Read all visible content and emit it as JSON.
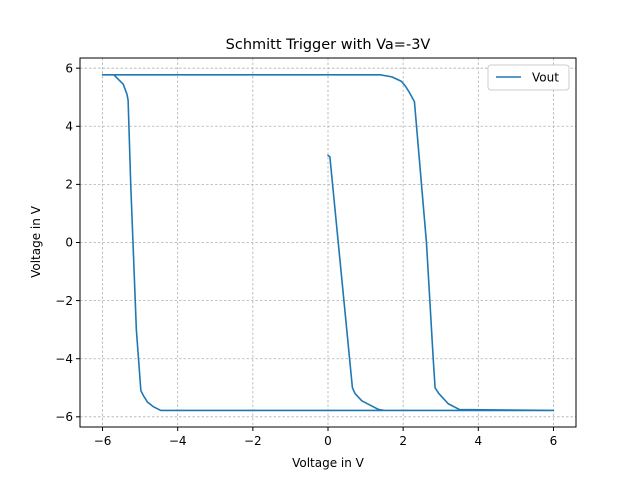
{
  "chart_data": {
    "type": "line",
    "title": "Schmitt Trigger with Va=-3V",
    "xlabel": "Voltage in V",
    "ylabel": "Voltage in V",
    "xlim": [
      -6.6,
      6.6
    ],
    "ylim": [
      -6.35,
      6.35
    ],
    "xticks": [
      -6,
      -4,
      -2,
      0,
      2,
      4,
      6
    ],
    "yticks": [
      -6,
      -4,
      -2,
      0,
      2,
      4,
      6
    ],
    "xtick_labels": [
      "−6",
      "−4",
      "−2",
      "0",
      "2",
      "4",
      "6"
    ],
    "ytick_labels": [
      "−6",
      "−4",
      "−2",
      "0",
      "2",
      "4",
      "6"
    ],
    "grid": true,
    "legend_position": "top-right",
    "series": [
      {
        "name": "Vout",
        "color": "#1f77b4",
        "x": [
          0,
          0.05,
          0.65,
          0.72,
          0.9,
          1.2,
          1.35,
          1.5,
          3.5,
          4.5,
          6.0,
          6.0,
          3.5,
          3.2,
          2.95,
          2.85,
          2.8,
          2.62,
          2.3,
          2.15,
          2.05,
          1.95,
          1.7,
          1.4,
          -5.7,
          -6.0,
          -5.7,
          -5.45,
          -5.35,
          -5.32,
          -5.25,
          -5.1,
          -4.98,
          -4.9,
          -4.8,
          -4.65,
          -4.45,
          3.0,
          6.0
        ],
        "y": [
          3.0,
          2.95,
          -5.0,
          -5.2,
          -5.45,
          -5.65,
          -5.75,
          -5.78,
          -5.78,
          -5.78,
          -5.78,
          -5.78,
          -5.75,
          -5.55,
          -5.2,
          -5.0,
          -4.0,
          0.0,
          4.85,
          5.2,
          5.4,
          5.55,
          5.7,
          5.77,
          5.77,
          5.77,
          5.77,
          5.45,
          5.1,
          4.9,
          2.0,
          -3.0,
          -5.1,
          -5.3,
          -5.5,
          -5.65,
          -5.78,
          -5.78,
          -5.78
        ]
      }
    ]
  }
}
